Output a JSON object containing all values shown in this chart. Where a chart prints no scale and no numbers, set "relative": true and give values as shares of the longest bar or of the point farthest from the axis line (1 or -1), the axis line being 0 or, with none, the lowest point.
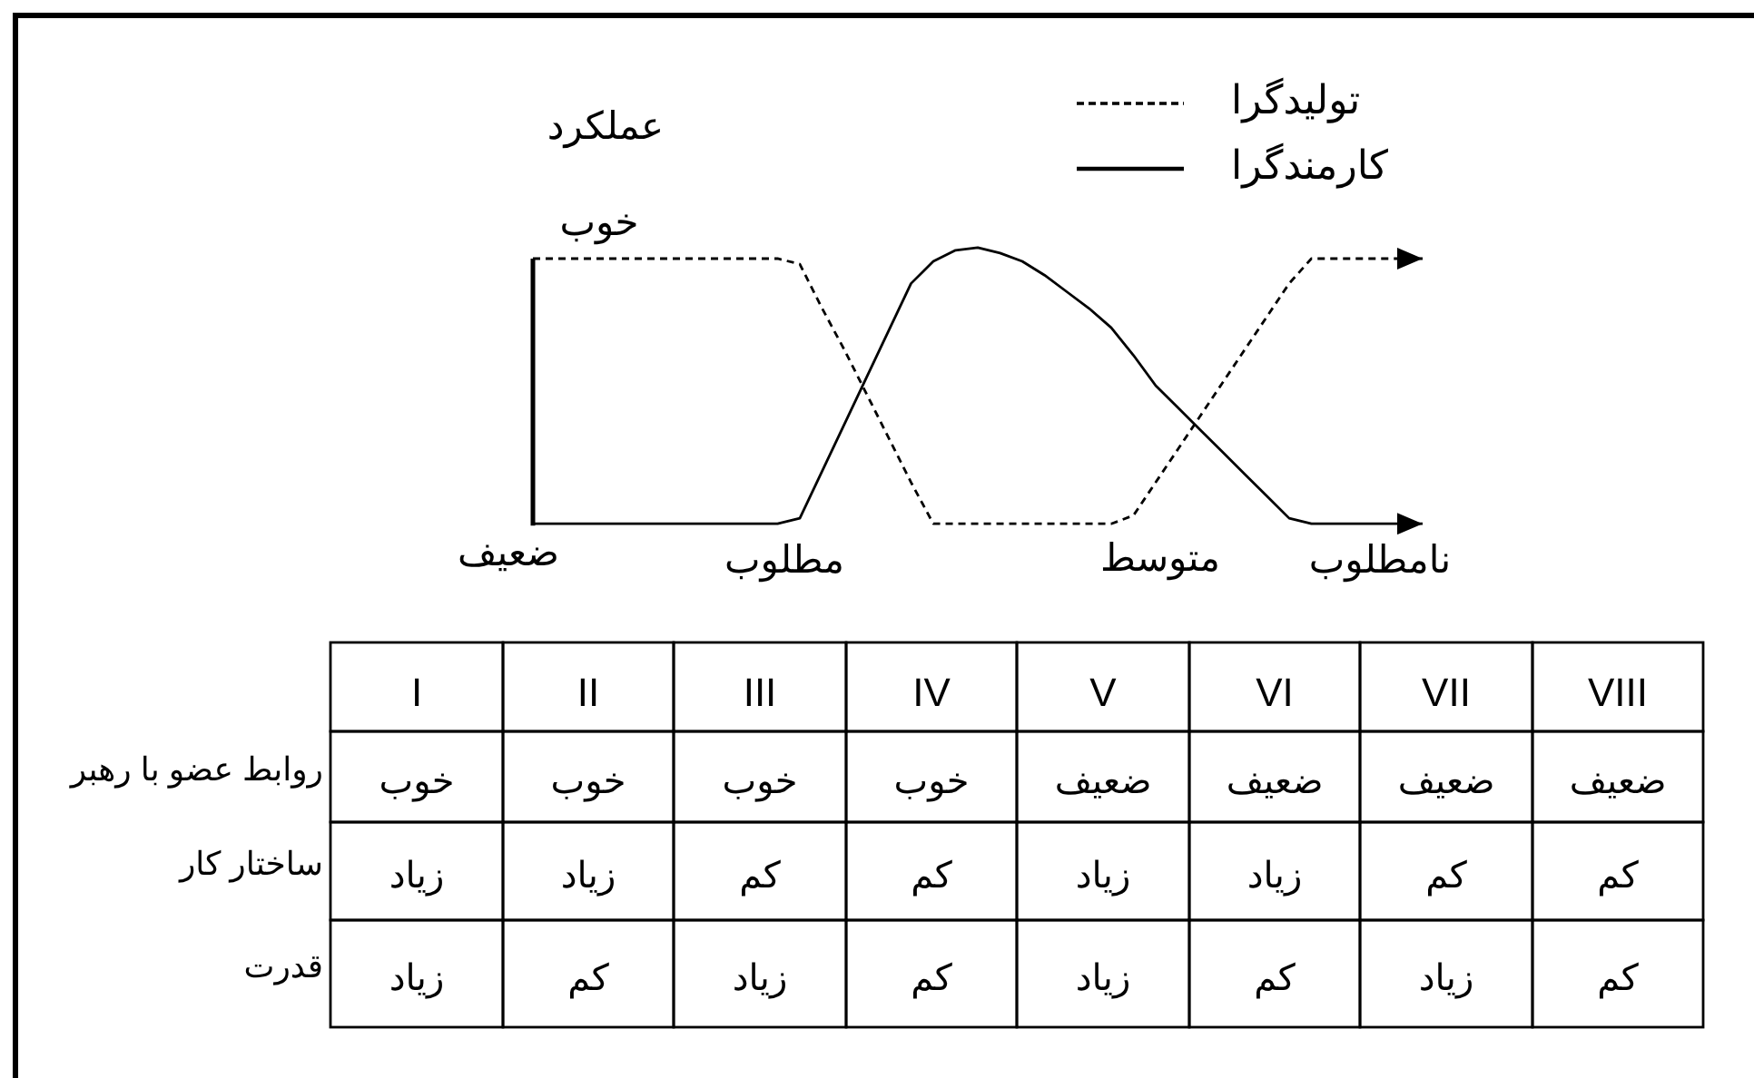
{
  "chart_data": [
    {
      "type": "line",
      "relative": true,
      "ylabel": "عملکرد",
      "legend": "top right",
      "categories": [
        null,
        null,
        null,
        null,
        null,
        null,
        null,
        null,
        null,
        null,
        null,
        null,
        null,
        null,
        null,
        null,
        null,
        null,
        null,
        null,
        null,
        null,
        null,
        null,
        null,
        null,
        null,
        null,
        null,
        null,
        null,
        null,
        null,
        null,
        null,
        null,
        null,
        null,
        null,
        null,
        null
      ],
      "series": [
        {
          "name": "تولیدگرا",
          "color": "#000000",
          "line_style": "dashed",
          "values": [
            0.96,
            0.96,
            0.96,
            0.96,
            0.96,
            0.96,
            0.96,
            0.96,
            0.96,
            0.96,
            0.96,
            0.96,
            0.94,
            0.78,
            0.63,
            0.47,
            0.31,
            0.15,
            0,
            0,
            0,
            0,
            0,
            0,
            0,
            0,
            0,
            0.03,
            0.15,
            0.27,
            0.39,
            0.51,
            0.63,
            0.75,
            0.87,
            0.96,
            0.96,
            0.96,
            0.96,
            0.96,
            0.96
          ]
        },
        {
          "name": "کارمندگرا",
          "color": "#000000",
          "line_style": "solid",
          "values": [
            0,
            0,
            0,
            0,
            0,
            0,
            0,
            0,
            0,
            0,
            0,
            0,
            0.02,
            0.19,
            0.36,
            0.53,
            0.7,
            0.87,
            0.95,
            0.99,
            1,
            0.98,
            0.95,
            0.9,
            0.84,
            0.78,
            0.71,
            0.61,
            0.5,
            0.42,
            0.34,
            0.26,
            0.18,
            0.1,
            0.02,
            0,
            0,
            0,
            0,
            0,
            0
          ]
        }
      ],
      "annotations": [
        "خوب",
        "ضعیف",
        "مطلوب",
        "متوسط",
        "نامطلوب"
      ]
    },
    {
      "type": "other",
      "categories": [
        "I",
        "II",
        "III",
        "IV",
        "V",
        "VI",
        "VII",
        "VIII"
      ],
      "y_categories": [
        "روابط عضو با رهبر",
        "ساختار کار",
        "قدرت"
      ],
      "cell_labels": [
        [
          "خوب",
          "خوب",
          "خوب",
          "خوب",
          "ضعیف",
          "ضعیف",
          "ضعیف",
          "ضعیف"
        ],
        [
          "زیاد",
          "زیاد",
          "کم",
          "کم",
          "زیاد",
          "زیاد",
          "کم",
          "کم"
        ],
        [
          "زیاد",
          "کم",
          "زیاد",
          "کم",
          "زیاد",
          "کم",
          "زیاد",
          "کم"
        ]
      ]
    }
  ]
}
